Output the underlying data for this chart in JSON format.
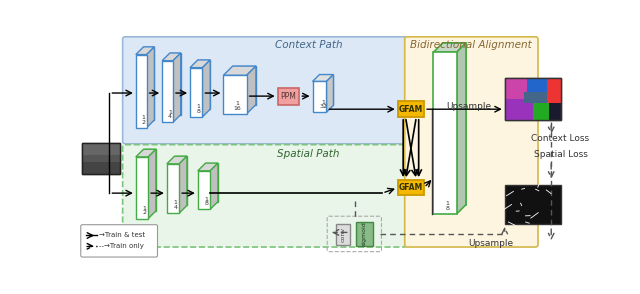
{
  "context_path_label": "Context Path",
  "spatial_path_label": "Spatial Path",
  "bidirectional_label": "Bidirectional Alignment",
  "context_bg": "#dce8f5",
  "spatial_bg": "#e8f5e8",
  "bidirectional_bg": "#fdf5e0",
  "context_border": "#9ab8d8",
  "spatial_border": "#7cc47c",
  "bidirectional_border": "#d4b84a",
  "ppm_color": "#f0a0a0",
  "gfam_color": "#f5b800",
  "conv_color": "#e8e8e8",
  "sigmoid_color": "#88bb88",
  "upsample_label": "Upsample",
  "context_loss_label": "Context Loss",
  "spatial_loss_label": "Spatial Loss",
  "ppm_label": "PPM",
  "gfam_label": "GFAM",
  "conv_label": "conv",
  "sigmoid_label": "sigmoid",
  "train_test_label": "→Train & test",
  "train_only_label": "--→Train only",
  "ctx_fracs": [
    "1\n2",
    "1\n4",
    "1\n8",
    "1\n16"
  ],
  "sp_fracs": [
    "1\n2",
    "1\n4",
    "1\n8"
  ],
  "frac_32": "1\n32",
  "frac_8": "1\n8",
  "ctx_block_color": "#4488cc",
  "sp_block_color": "#44aa44",
  "bidir_block_color": "#44aa44"
}
